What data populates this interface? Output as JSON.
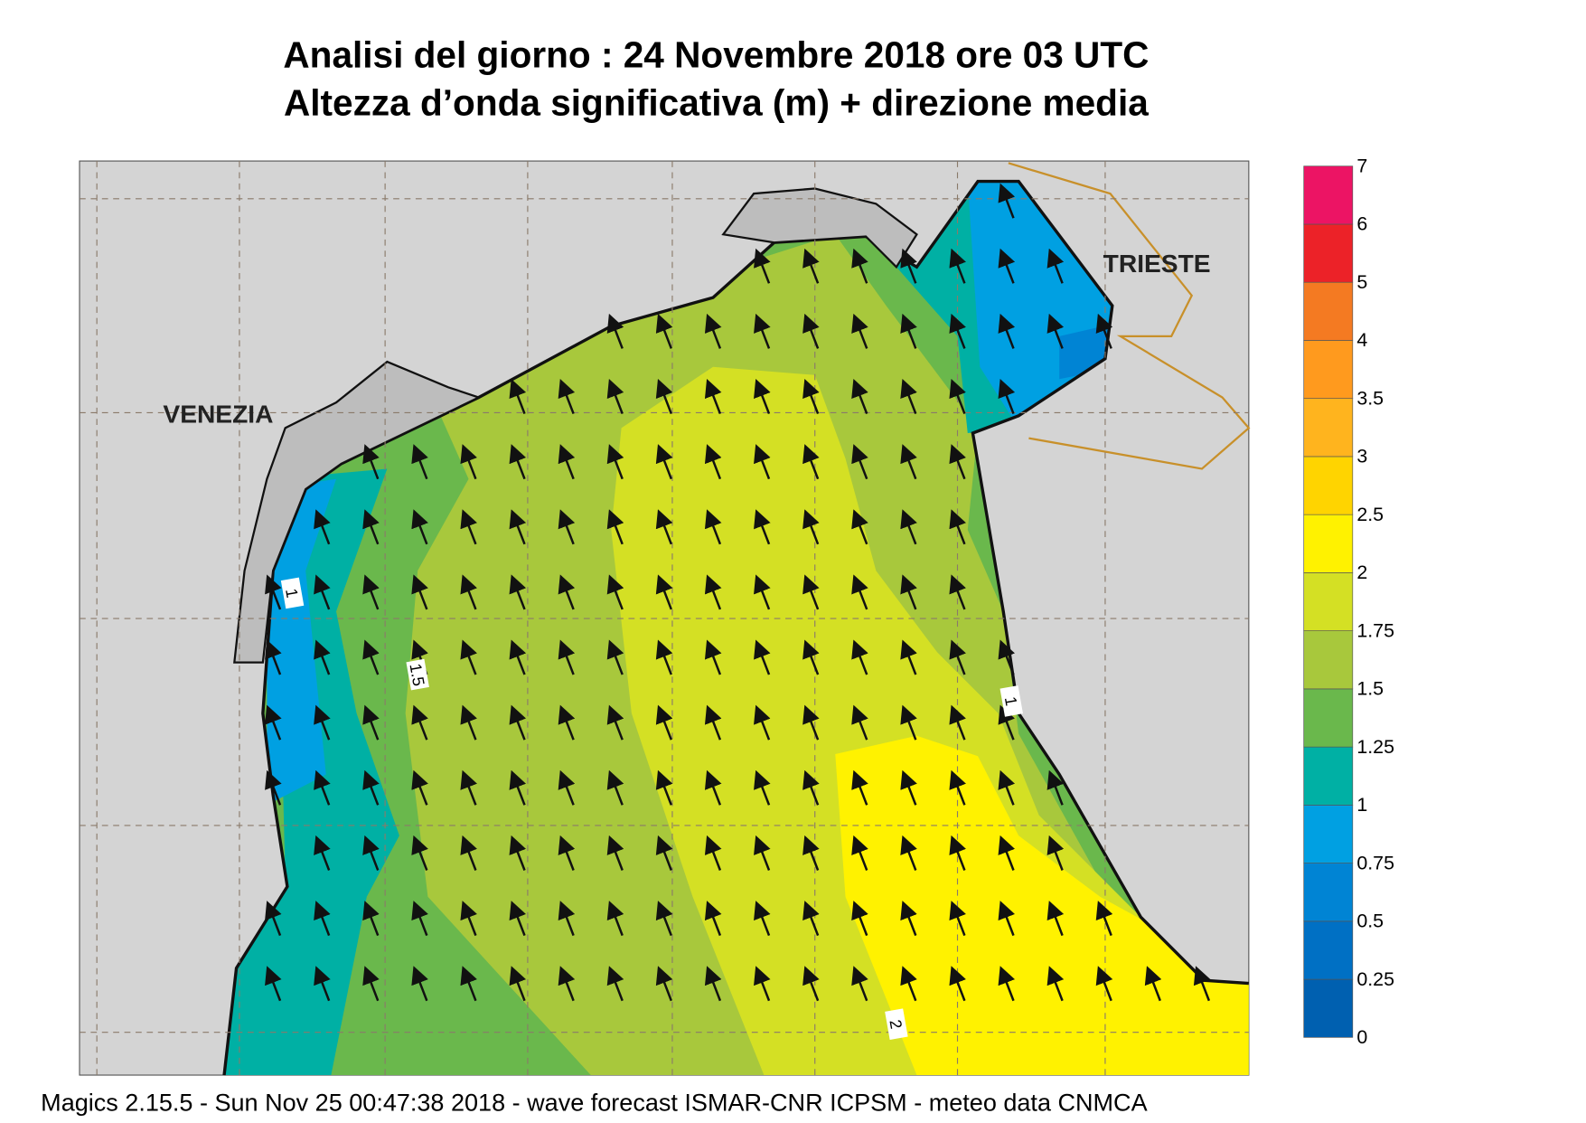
{
  "title": "Analisi del giorno :  24 Novembre  2018   ore 03 UTC",
  "subtitle": "Altezza d’onda significativa (m) + direzione media",
  "places": [
    {
      "label": "VENEZIA"
    },
    {
      "label": "TRIESTE"
    }
  ],
  "contour_labels": [
    1,
    1.5,
    1,
    2
  ],
  "legend": {
    "levels": [
      0,
      0.25,
      0.5,
      0.75,
      1,
      1.25,
      1.5,
      1.75,
      2,
      2.5,
      3,
      3.5,
      4,
      5,
      6,
      7
    ],
    "colors": [
      "#0060b0",
      "#0070c4",
      "#0084d4",
      "#00a0e2",
      "#00b0a4",
      "#6ab84c",
      "#a8c83c",
      "#d4e024",
      "#fff200",
      "#ffd400",
      "#ffb41e",
      "#ff9a1e",
      "#f47a22",
      "#ec2228",
      "#ec1464"
    ]
  },
  "footer": "Magics 2.15.5 - Sun Nov 25 00:47:38 2018 - wave forecast  ISMAR-CNR  ICPSM - meteo data   CNMCA"
}
